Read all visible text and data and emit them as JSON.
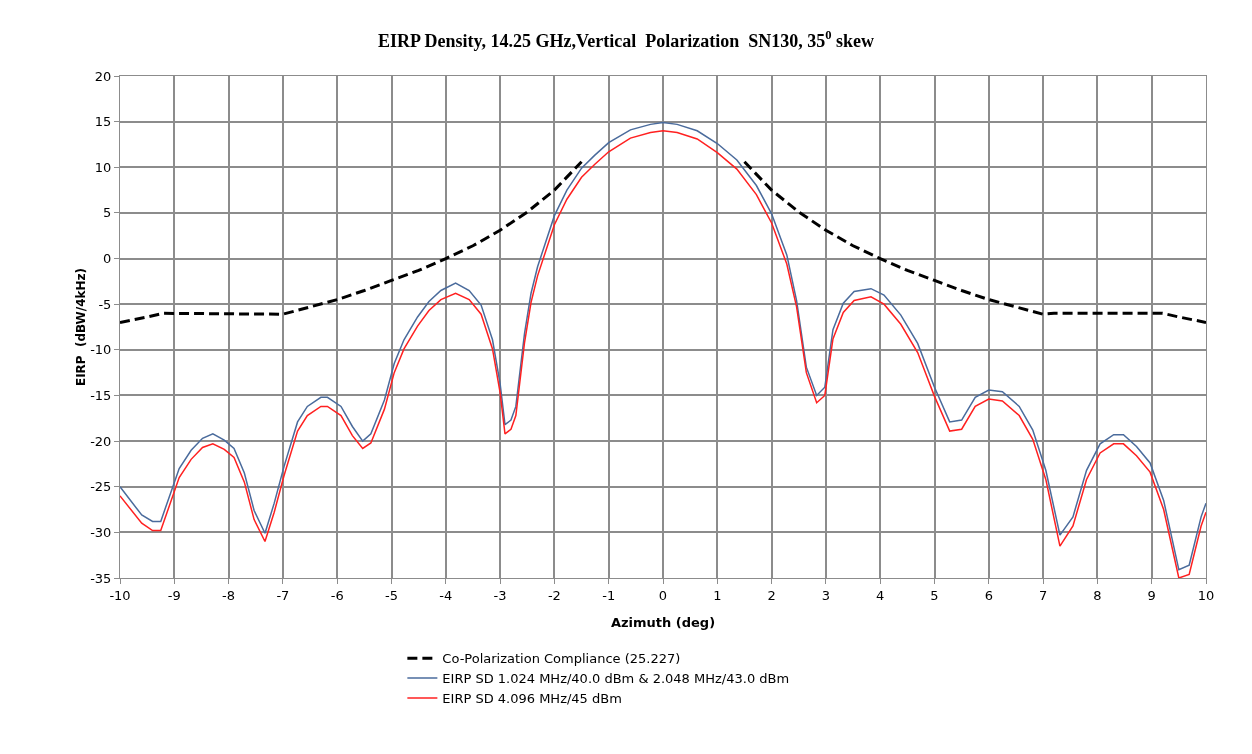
{
  "chart_data": {
    "type": "line",
    "title": "EIRP Density, 14.25 GHz,Vertical  Polarization  SN130, 35$^{0}$ skew",
    "xlabel": "Azimuth (deg)",
    "ylabel": "EIRP  (dBW/4kHz)",
    "xlim": [
      -10,
      10
    ],
    "xticks": [
      -10,
      -9,
      -8,
      -7,
      -6,
      -5,
      -4,
      -3,
      -2,
      -1,
      0,
      1,
      2,
      3,
      4,
      5,
      6,
      7,
      8,
      9,
      10
    ],
    "ylim": [
      -35,
      20
    ],
    "yticks": [
      -35,
      -30,
      -25,
      -20,
      -15,
      -10,
      -5,
      0,
      5,
      10,
      15,
      20
    ],
    "grid": true,
    "legend": "bottom",
    "marker": "none",
    "series": [
      {
        "name": "Co-Polarization Compliance (25.227)",
        "color": "#000000",
        "line_style": "dashed",
        "x": [
          -10,
          -9.5,
          -9.2,
          -7,
          -6.5,
          -6,
          -5.5,
          -5,
          -4.5,
          -4,
          -3.5,
          -3,
          -2.5,
          -2,
          -1.5
        ],
        "values": [
          -7,
          -6.4,
          -6,
          -6.1,
          -5.3,
          -4.5,
          -3.5,
          -2.4,
          -1.3,
          0,
          1.4,
          3.1,
          5.1,
          7.5,
          10.6
        ]
      },
      {
        "color": "#000000",
        "line_style": "dashed",
        "x": [
          1.5,
          2,
          2.5,
          3,
          3.5,
          4,
          4.5,
          5,
          5.5,
          6,
          6.5,
          7,
          7.2,
          9.2,
          9.5,
          10
        ],
        "values": [
          10.6,
          7.5,
          5.1,
          3.1,
          1.4,
          0,
          -1.3,
          -2.4,
          -3.5,
          -4.5,
          -5.3,
          -6.1,
          -6,
          -6,
          -6.4,
          -7
        ]
      },
      {
        "name": "EIRP SD 1.024 MHz/40.0 dBm & 2.048 MHz/43.0 dBm",
        "color": "#4a6b9c",
        "line_style": "solid",
        "x": [
          -10,
          -9.6,
          -9.4,
          -9.25,
          -8.91,
          -8.69,
          -8.48,
          -8.29,
          -8.08,
          -7.9,
          -7.71,
          -7.53,
          -7.33,
          -7.16,
          -6.98,
          -6.73,
          -6.55,
          -6.3,
          -6.18,
          -5.93,
          -5.72,
          -5.53,
          -5.38,
          -5.13,
          -4.95,
          -4.77,
          -4.52,
          -4.31,
          -4.09,
          -3.82,
          -3.57,
          -3.35,
          -3.14,
          -3.0,
          -2.91,
          -2.8,
          -2.71,
          -2.55,
          -2.43,
          -2.31,
          -2.0,
          -1.77,
          -1.5,
          -1.26,
          -1.0,
          -0.6,
          -0.23,
          0,
          0.26,
          0.63,
          1.0,
          1.36,
          1.72,
          2.0,
          2.28,
          2.46,
          2.64,
          2.83,
          2.98,
          3.13,
          3.32,
          3.52,
          3.83,
          4.07,
          4.38,
          4.69,
          5.0,
          5.28,
          5.5,
          5.75,
          6.0,
          6.25,
          6.56,
          6.81,
          7.05,
          7.31,
          7.55,
          7.8,
          8.05,
          8.3,
          8.48,
          8.72,
          8.97,
          9.22,
          9.5,
          9.69,
          9.91,
          10
        ],
        "values": [
          -25,
          -28.1,
          -28.8,
          -28.8,
          -23,
          -21,
          -19.7,
          -19.2,
          -19.9,
          -20.8,
          -23.5,
          -27.6,
          -30.1,
          -26.8,
          -22.8,
          -17.9,
          -16.2,
          -15.2,
          -15.2,
          -16.2,
          -18.4,
          -20,
          -19.2,
          -15.5,
          -11.5,
          -8.9,
          -6.4,
          -4.7,
          -3.5,
          -2.7,
          -3.5,
          -5.1,
          -8.9,
          -13.7,
          -18.2,
          -17.7,
          -16.2,
          -8.2,
          -3.8,
          -0.9,
          4.7,
          7.5,
          9.9,
          11.3,
          12.7,
          14.1,
          14.7,
          14.9,
          14.7,
          14,
          12.6,
          10.8,
          8,
          4.9,
          0.4,
          -4.6,
          -11.9,
          -15,
          -14.1,
          -7.8,
          -4.9,
          -3.6,
          -3.3,
          -4,
          -6.2,
          -9.3,
          -14.1,
          -17.9,
          -17.7,
          -15.2,
          -14.4,
          -14.6,
          -16.2,
          -18.8,
          -23.2,
          -30.3,
          -28.3,
          -23.2,
          -20.3,
          -19.3,
          -19.3,
          -20.6,
          -22.4,
          -26.5,
          -34.1,
          -33.6,
          -28.3,
          -26.8
        ]
      },
      {
        "name": "EIRP SD 4.096 MHz/45 dBm",
        "color": "#ff2020",
        "line_style": "solid",
        "x": [
          -10,
          -9.6,
          -9.4,
          -9.25,
          -8.91,
          -8.69,
          -8.48,
          -8.29,
          -8.08,
          -7.9,
          -7.71,
          -7.53,
          -7.33,
          -7.16,
          -6.98,
          -6.73,
          -6.55,
          -6.3,
          -6.18,
          -5.93,
          -5.72,
          -5.53,
          -5.38,
          -5.13,
          -4.95,
          -4.77,
          -4.52,
          -4.31,
          -4.09,
          -3.82,
          -3.57,
          -3.35,
          -3.14,
          -3.0,
          -2.91,
          -2.8,
          -2.71,
          -2.55,
          -2.43,
          -2.31,
          -2.0,
          -1.77,
          -1.5,
          -1.26,
          -1.0,
          -0.6,
          -0.23,
          0,
          0.26,
          0.63,
          1.0,
          1.36,
          1.72,
          2.0,
          2.28,
          2.46,
          2.64,
          2.83,
          2.98,
          3.13,
          3.32,
          3.52,
          3.83,
          4.07,
          4.38,
          4.69,
          5.0,
          5.28,
          5.5,
          5.75,
          6.0,
          6.25,
          6.56,
          6.81,
          7.05,
          7.31,
          7.55,
          7.8,
          8.05,
          8.3,
          8.48,
          8.72,
          8.97,
          9.22,
          9.5,
          9.69,
          9.91,
          10
        ],
        "values": [
          -26,
          -29,
          -29.8,
          -29.8,
          -24,
          -22,
          -20.7,
          -20.3,
          -20.9,
          -21.8,
          -24.5,
          -28.6,
          -31,
          -27.8,
          -23.8,
          -18.9,
          -17.2,
          -16.2,
          -16.2,
          -17.2,
          -19.4,
          -20.8,
          -20.2,
          -16.5,
          -12.5,
          -9.9,
          -7.4,
          -5.7,
          -4.5,
          -3.8,
          -4.5,
          -6.1,
          -9.9,
          -14.7,
          -19.2,
          -18.7,
          -17.2,
          -9.2,
          -4.8,
          -1.9,
          3.7,
          6.5,
          8.9,
          10.3,
          11.7,
          13.2,
          13.8,
          14,
          13.8,
          13.1,
          11.6,
          9.8,
          7,
          3.9,
          -0.6,
          -5.3,
          -12.5,
          -15.8,
          -15,
          -8.8,
          -5.9,
          -4.6,
          -4.2,
          -5,
          -7.2,
          -10.3,
          -15.1,
          -18.9,
          -18.7,
          -16.2,
          -15.4,
          -15.6,
          -17.2,
          -19.8,
          -24.2,
          -31.5,
          -29.3,
          -24.2,
          -21.3,
          -20.3,
          -20.3,
          -21.6,
          -23.4,
          -27.5,
          -35,
          -34.6,
          -29.3,
          -27.8
        ]
      }
    ]
  }
}
